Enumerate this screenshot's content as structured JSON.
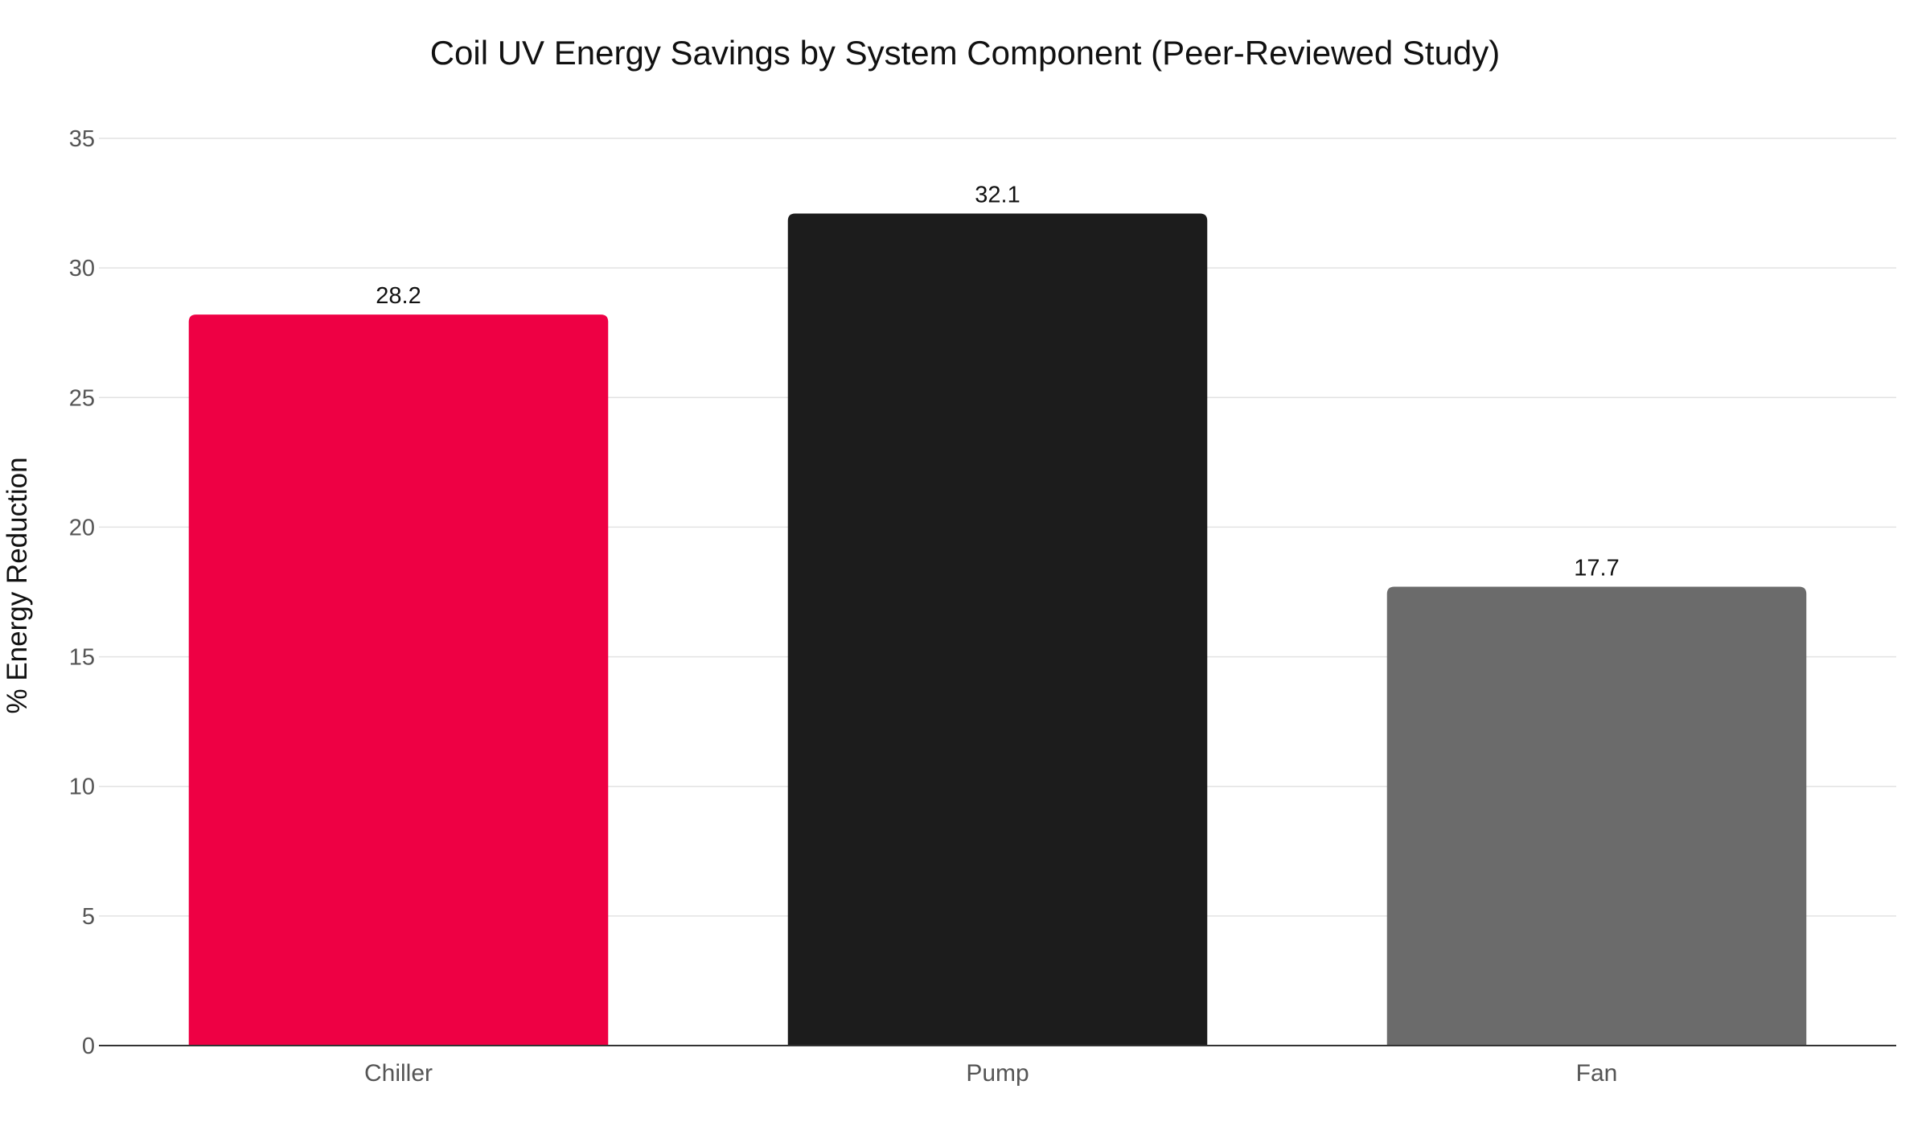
{
  "chart_data": {
    "type": "bar",
    "title": "Coil UV Energy Savings by System Component (Peer-Reviewed Study)",
    "xlabel": "",
    "ylabel": "% Energy Reduction",
    "categories": [
      "Chiller",
      "Pump",
      "Fan"
    ],
    "values": [
      28.2,
      32.1,
      17.7
    ],
    "value_labels": [
      "28.2",
      "32.1",
      "17.7"
    ],
    "colors": [
      "#ee0044",
      "#1c1c1c",
      "#6b6b6b"
    ],
    "ylim": [
      0,
      35
    ],
    "yticks": [
      0,
      5,
      10,
      15,
      20,
      25,
      30,
      35
    ],
    "grid": true,
    "legend": "none"
  }
}
